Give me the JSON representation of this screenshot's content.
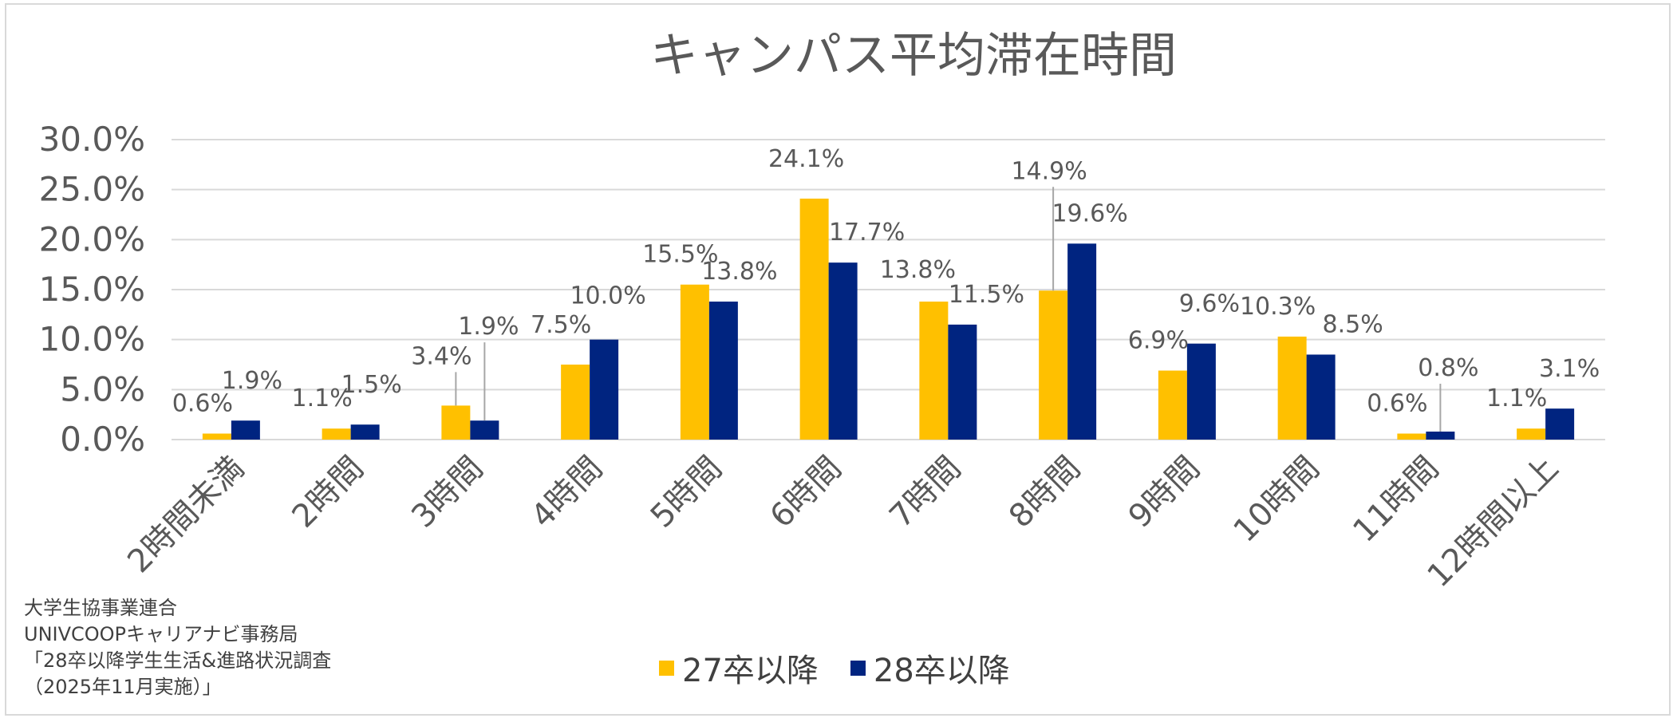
{
  "chart_data": {
    "type": "bar",
    "title": "キャンパス平均滞在時間",
    "categories": [
      "2時間未満",
      "2時間",
      "3時間",
      "4時間",
      "5時間",
      "6時間",
      "7時間",
      "8時間",
      "9時間",
      "10時間",
      "11時間",
      "12時間以上"
    ],
    "series": [
      {
        "name": "27卒以降",
        "color": "#FFC000",
        "values": [
          0.6,
          1.1,
          3.4,
          7.5,
          15.5,
          24.1,
          13.8,
          14.9,
          6.9,
          10.3,
          0.6,
          1.1
        ],
        "labels": [
          "0.6%",
          "1.1%",
          "3.4%",
          "7.5%",
          "15.5%",
          "24.1%",
          "13.8%",
          "14.9%",
          "6.9%",
          "10.3%",
          "0.6%",
          "1.1%"
        ]
      },
      {
        "name": "28卒以降",
        "color": "#002480",
        "values": [
          1.9,
          1.5,
          1.9,
          10.0,
          13.8,
          17.7,
          11.5,
          19.6,
          9.6,
          8.5,
          0.8,
          3.1
        ],
        "labels": [
          "1.9%",
          "1.5%",
          "1.9%",
          "10.0%",
          "13.8%",
          "17.7%",
          "11.5%",
          "19.6%",
          "9.6%",
          "8.5%",
          "0.8%",
          "3.1%"
        ]
      }
    ],
    "yticks": [
      "0.0%",
      "5.0%",
      "10.0%",
      "15.0%",
      "20.0%",
      "25.0%",
      "30.0%"
    ],
    "ylim": [
      0,
      30
    ],
    "xlabel": "",
    "ylabel": "",
    "grid": true,
    "legend": "bottom"
  },
  "source": [
    "大学生協事業連合",
    "UNIVCOOPキャリアナビ事務局",
    "「28卒以降学生生活&進路状況調査",
    "（2025年11月実施）」"
  ],
  "colors": {
    "grid": "#d9d9d9",
    "text": "#595959",
    "leader": "#a6a6a6"
  }
}
